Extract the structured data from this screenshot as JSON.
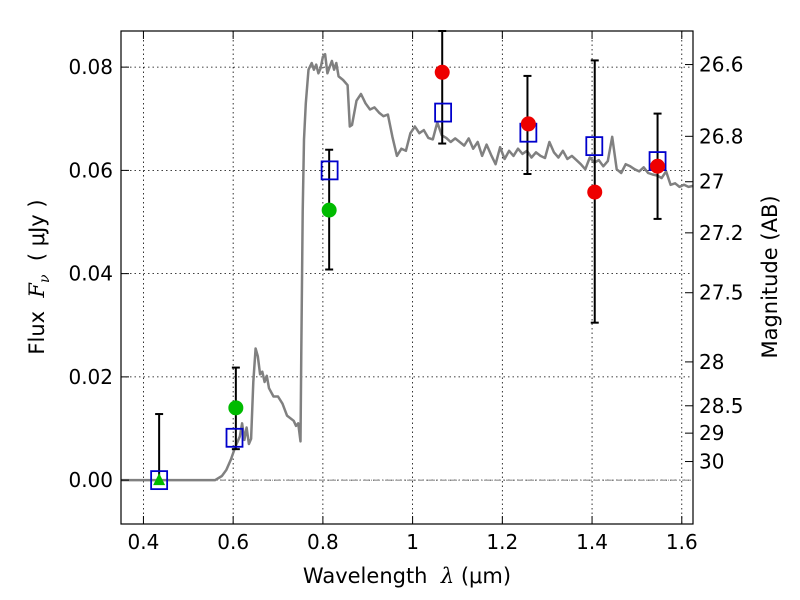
{
  "chart_data": {
    "type": "scatter",
    "title": "",
    "xlabel": {
      "prefix": "Wavelength  ",
      "symbol": "λ",
      "unit": " (μm)"
    },
    "ylabel": {
      "prefix": "Flux  ",
      "symbol": "F",
      "subscript": "ν",
      "unit": "  ( μJy )"
    },
    "ylabel_right": "Magnitude (AB)",
    "xlim": [
      0.35,
      1.625
    ],
    "ylim": [
      -0.0085,
      0.087
    ],
    "grid": true,
    "x_ticks": [
      0.4,
      0.6,
      0.8,
      1.0,
      1.2,
      1.4,
      1.6
    ],
    "x_tick_labels": [
      "0.4",
      "0.6",
      "0.8",
      "1",
      "1.2",
      "1.4",
      "1.6"
    ],
    "y_ticks": [
      0.0,
      0.02,
      0.04,
      0.06,
      0.08
    ],
    "y_tick_labels": [
      "0.00",
      "0.02",
      "0.04",
      "0.06",
      "0.08"
    ],
    "right_ticks": [
      {
        "flux": 0.0805,
        "label": "26.6"
      },
      {
        "flux": 0.0666,
        "label": "26.8"
      },
      {
        "flux": 0.0578,
        "label": "27"
      },
      {
        "flux": 0.0479,
        "label": "27.2"
      },
      {
        "flux": 0.0363,
        "label": "27.5"
      },
      {
        "flux": 0.0229,
        "label": "28"
      },
      {
        "flux": 0.0144,
        "label": "28.5"
      },
      {
        "flux": 0.0091,
        "label": "29"
      },
      {
        "flux": 0.0036,
        "label": "30"
      }
    ],
    "zero_line": 0.0,
    "model_spectrum": {
      "color": "#808080",
      "points": [
        [
          0.35,
          0.0
        ],
        [
          0.56,
          0.0
        ],
        [
          0.575,
          0.0008
        ],
        [
          0.585,
          0.002
        ],
        [
          0.595,
          0.004
        ],
        [
          0.605,
          0.0065
        ],
        [
          0.615,
          0.0085
        ],
        [
          0.62,
          0.011
        ],
        [
          0.625,
          0.0078
        ],
        [
          0.63,
          0.0102
        ],
        [
          0.635,
          0.007
        ],
        [
          0.64,
          0.008
        ],
        [
          0.645,
          0.019
        ],
        [
          0.65,
          0.0255
        ],
        [
          0.655,
          0.024
        ],
        [
          0.66,
          0.0205
        ],
        [
          0.665,
          0.021
        ],
        [
          0.67,
          0.019
        ],
        [
          0.675,
          0.0202
        ],
        [
          0.68,
          0.0178
        ],
        [
          0.69,
          0.0162
        ],
        [
          0.7,
          0.0162
        ],
        [
          0.71,
          0.0148
        ],
        [
          0.72,
          0.0125
        ],
        [
          0.735,
          0.0115
        ],
        [
          0.74,
          0.0105
        ],
        [
          0.745,
          0.011
        ],
        [
          0.75,
          0.0075
        ],
        [
          0.752,
          0.025
        ],
        [
          0.755,
          0.052
        ],
        [
          0.758,
          0.066
        ],
        [
          0.762,
          0.073
        ],
        [
          0.768,
          0.0795
        ],
        [
          0.775,
          0.0808
        ],
        [
          0.78,
          0.0795
        ],
        [
          0.785,
          0.0805
        ],
        [
          0.79,
          0.0788
        ],
        [
          0.795,
          0.0798
        ],
        [
          0.8,
          0.082
        ],
        [
          0.805,
          0.0825
        ],
        [
          0.81,
          0.0788
        ],
        [
          0.815,
          0.08
        ],
        [
          0.82,
          0.0812
        ],
        [
          0.825,
          0.0795
        ],
        [
          0.83,
          0.0808
        ],
        [
          0.835,
          0.0782
        ],
        [
          0.845,
          0.0775
        ],
        [
          0.855,
          0.0765
        ],
        [
          0.86,
          0.0685
        ],
        [
          0.865,
          0.0688
        ],
        [
          0.875,
          0.0735
        ],
        [
          0.885,
          0.0748
        ],
        [
          0.895,
          0.073
        ],
        [
          0.905,
          0.0718
        ],
        [
          0.915,
          0.0722
        ],
        [
          0.925,
          0.0712
        ],
        [
          0.935,
          0.0705
        ],
        [
          0.945,
          0.0708
        ],
        [
          0.955,
          0.0665
        ],
        [
          0.965,
          0.0628
        ],
        [
          0.975,
          0.0642
        ],
        [
          0.985,
          0.0638
        ],
        [
          0.995,
          0.0672
        ],
        [
          1.005,
          0.0685
        ],
        [
          1.015,
          0.0672
        ],
        [
          1.025,
          0.0678
        ],
        [
          1.035,
          0.0663
        ],
        [
          1.045,
          0.066
        ],
        [
          1.055,
          0.0693
        ],
        [
          1.065,
          0.0668
        ],
        [
          1.075,
          0.0663
        ],
        [
          1.085,
          0.0655
        ],
        [
          1.095,
          0.0662
        ],
        [
          1.105,
          0.0655
        ],
        [
          1.115,
          0.0648
        ],
        [
          1.125,
          0.0662
        ],
        [
          1.135,
          0.0642
        ],
        [
          1.145,
          0.0655
        ],
        [
          1.155,
          0.0628
        ],
        [
          1.165,
          0.065
        ],
        [
          1.175,
          0.063
        ],
        [
          1.185,
          0.0612
        ],
        [
          1.195,
          0.0645
        ],
        [
          1.205,
          0.0622
        ],
        [
          1.215,
          0.0638
        ],
        [
          1.225,
          0.0628
        ],
        [
          1.235,
          0.0642
        ],
        [
          1.245,
          0.0632
        ],
        [
          1.255,
          0.0638
        ],
        [
          1.265,
          0.0625
        ],
        [
          1.275,
          0.0635
        ],
        [
          1.285,
          0.0628
        ],
        [
          1.295,
          0.0624
        ],
        [
          1.305,
          0.0655
        ],
        [
          1.315,
          0.0635
        ],
        [
          1.325,
          0.0625
        ],
        [
          1.335,
          0.0638
        ],
        [
          1.345,
          0.0622
        ],
        [
          1.355,
          0.0628
        ],
        [
          1.365,
          0.062
        ],
        [
          1.375,
          0.0612
        ],
        [
          1.385,
          0.0602
        ],
        [
          1.395,
          0.0625
        ],
        [
          1.405,
          0.0615
        ],
        [
          1.415,
          0.062
        ],
        [
          1.425,
          0.0608
        ],
        [
          1.435,
          0.0618
        ],
        [
          1.445,
          0.0665
        ],
        [
          1.455,
          0.0602
        ],
        [
          1.465,
          0.0595
        ],
        [
          1.475,
          0.0612
        ],
        [
          1.485,
          0.0608
        ],
        [
          1.495,
          0.0602
        ],
        [
          1.505,
          0.0598
        ],
        [
          1.515,
          0.0606
        ],
        [
          1.525,
          0.0595
        ],
        [
          1.535,
          0.0592
        ],
        [
          1.545,
          0.059
        ],
        [
          1.555,
          0.0585
        ],
        [
          1.565,
          0.0598
        ],
        [
          1.575,
          0.0572
        ],
        [
          1.585,
          0.0575
        ],
        [
          1.595,
          0.0568
        ],
        [
          1.605,
          0.0572
        ],
        [
          1.615,
          0.0568
        ],
        [
          1.625,
          0.057
        ]
      ]
    },
    "error_bars": [
      {
        "x": 0.435,
        "low": -0.0005,
        "high": 0.0128
      },
      {
        "x": 0.606,
        "low": 0.006,
        "high": 0.0218
      },
      {
        "x": 0.814,
        "low": 0.0408,
        "high": 0.064
      },
      {
        "x": 1.066,
        "low": 0.0652,
        "high": 0.087
      },
      {
        "x": 1.256,
        "low": 0.0593,
        "high": 0.0783
      },
      {
        "x": 1.406,
        "low": 0.0305,
        "high": 0.0813
      },
      {
        "x": 1.546,
        "low": 0.0506,
        "high": 0.071
      }
    ],
    "model_squares": {
      "color": "#0000cc",
      "points": [
        [
          0.435,
          0.0
        ],
        [
          0.603,
          0.0082
        ],
        [
          0.815,
          0.06
        ],
        [
          1.068,
          0.0712
        ],
        [
          1.258,
          0.0673
        ],
        [
          1.405,
          0.0647
        ],
        [
          1.546,
          0.0618
        ]
      ]
    },
    "detections_green": {
      "color": "#00bb00",
      "points": [
        [
          0.606,
          0.014
        ],
        [
          0.814,
          0.0523
        ]
      ]
    },
    "detections_red": {
      "color": "#ee0000",
      "points": [
        [
          1.066,
          0.079
        ],
        [
          1.258,
          0.069
        ],
        [
          1.406,
          0.0558
        ],
        [
          1.546,
          0.0608
        ]
      ]
    },
    "upper_limits_green": {
      "color": "#00bb00",
      "points": [
        [
          0.435,
          0.0
        ]
      ]
    }
  }
}
